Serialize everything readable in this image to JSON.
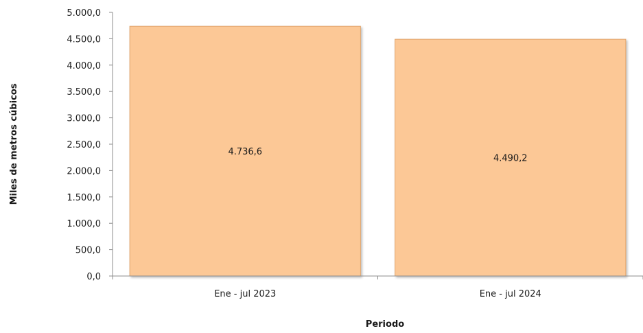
{
  "chart_data": {
    "type": "bar",
    "categories": [
      "Ene - jul 2023",
      "Ene - jul 2024"
    ],
    "values": [
      4736.6,
      4490.2
    ],
    "data_labels": [
      "4.736,6",
      "4.490,2"
    ],
    "title": "",
    "xlabel": "Periodo",
    "ylabel": "Miles de metros cúbicos",
    "ylim": [
      0,
      5000
    ],
    "yticks": [
      0,
      500,
      1000,
      1500,
      2000,
      2500,
      3000,
      3500,
      4000,
      4500,
      5000
    ],
    "ytick_labels": [
      "0,0",
      "500,0",
      "1.000,0",
      "1.500,0",
      "2.000,0",
      "2.500,0",
      "3.000,0",
      "3.500,0",
      "4.000,0",
      "4.500,0",
      "5.000,0"
    ],
    "grid": false,
    "legend": "none",
    "colors": {
      "bar_fill": "#FCC896",
      "bar_edge": "#E0A56E",
      "axis": "#8c8c8c"
    }
  }
}
